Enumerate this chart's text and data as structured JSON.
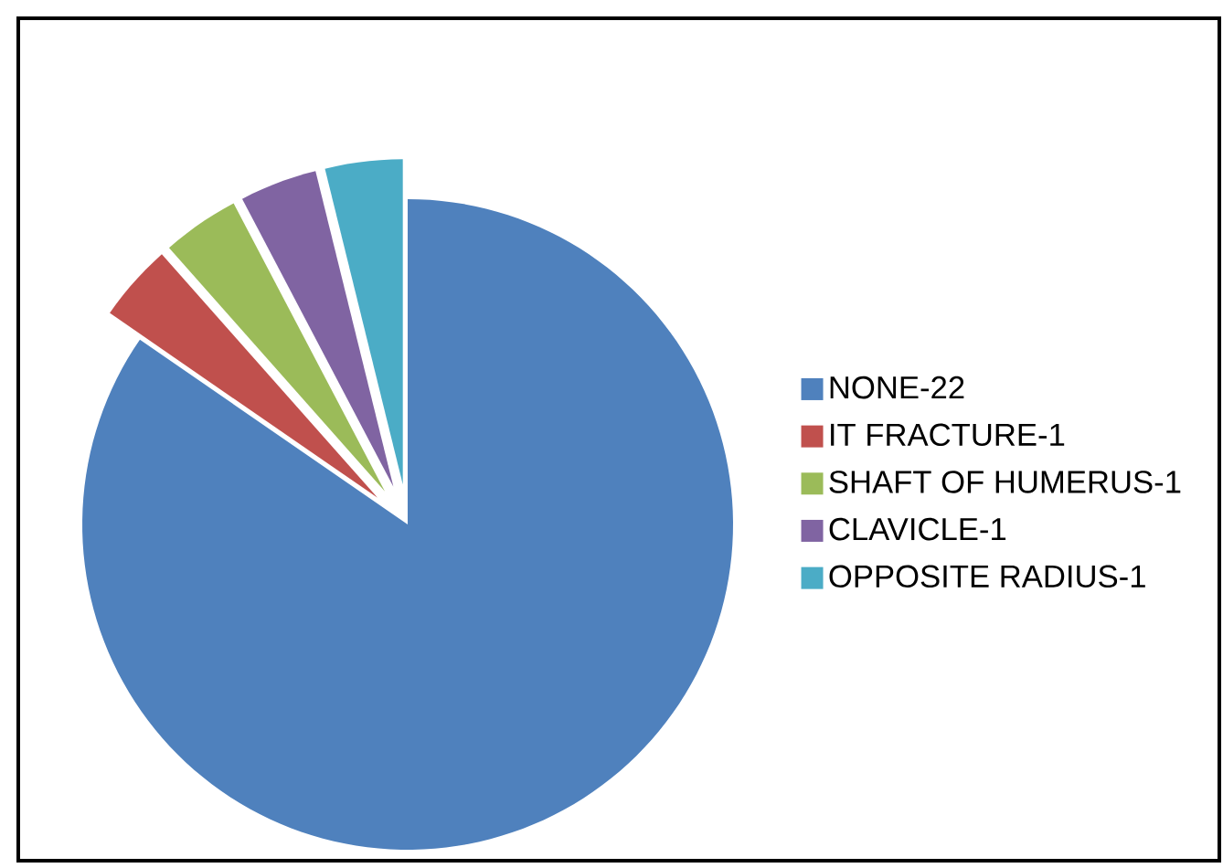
{
  "chart_data": {
    "type": "pie",
    "categories": [
      "NONE-",
      "IT FRACTURE-",
      "SHAFT OF HUMERUS-",
      "CLAVICLE-",
      "OPPOSITE RADIUS-"
    ],
    "values": [
      22,
      1,
      1,
      1,
      1
    ],
    "colors": [
      "#4f81bd",
      "#c0504d",
      "#9bbb59",
      "#8064a2",
      "#4bacc6"
    ],
    "data_labels": true,
    "legend": "right"
  }
}
